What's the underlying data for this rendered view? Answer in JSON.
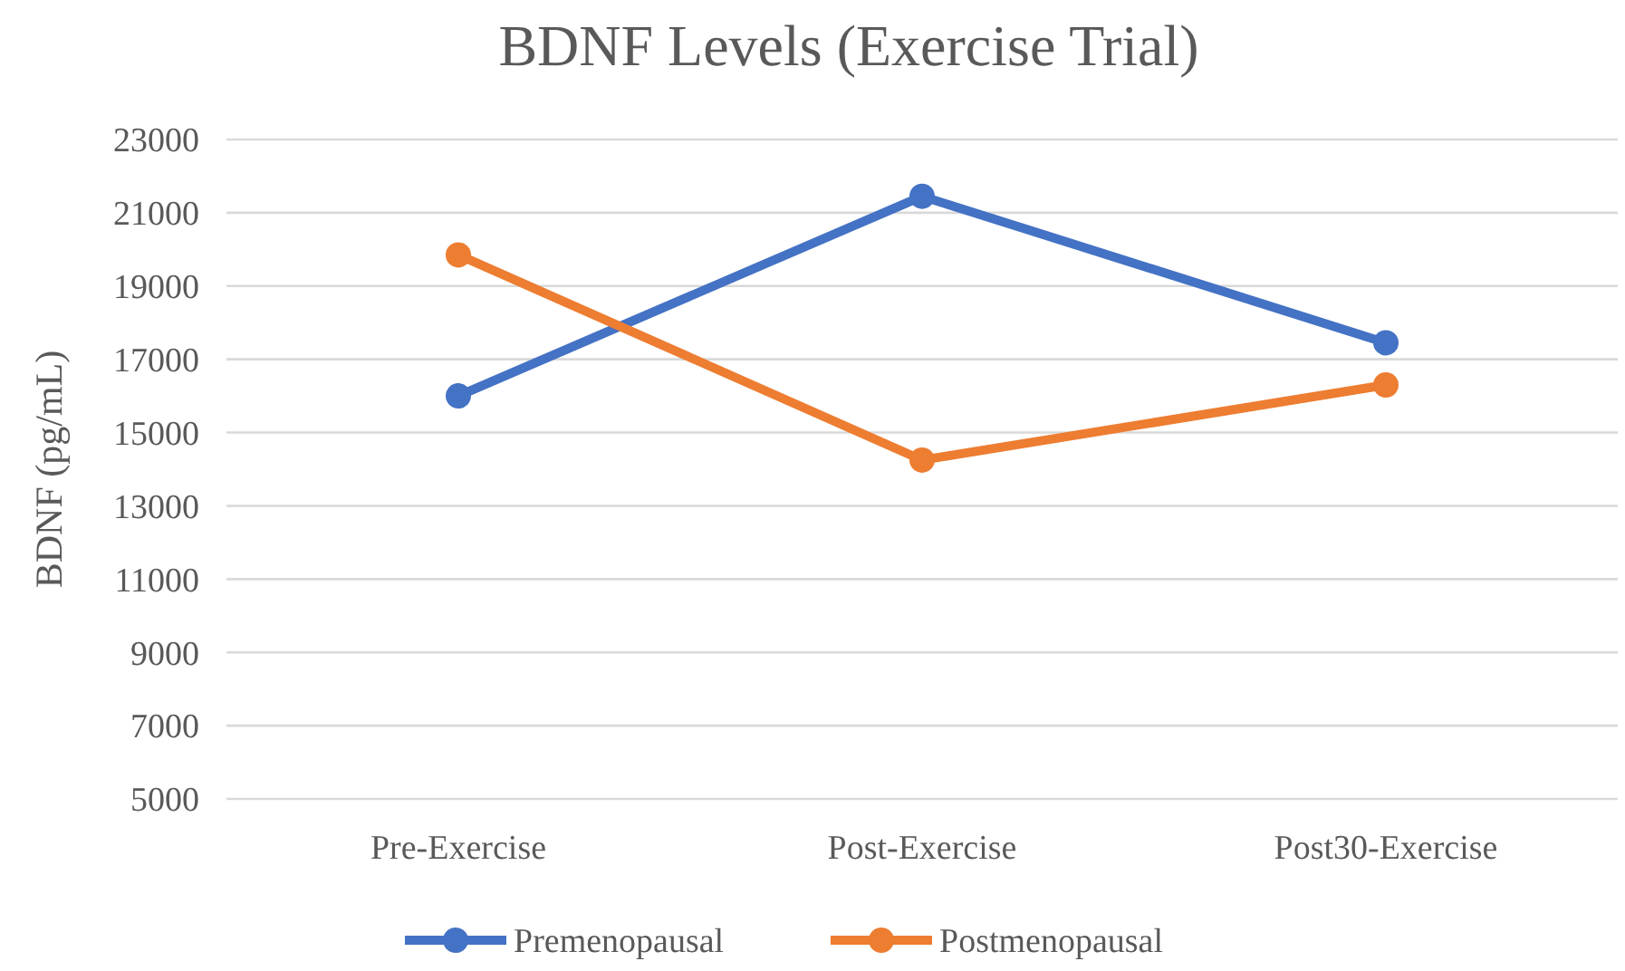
{
  "chart_data": {
    "type": "line",
    "title": "BDNF Levels (Exercise Trial)",
    "ylabel": "BDNF (pg/mL)",
    "categories": [
      "Pre-Exercise",
      "Post-Exercise",
      "Post30-Exercise"
    ],
    "series": [
      {
        "name": "Premenopausal",
        "color": "#4472c4",
        "values": [
          16000,
          21450,
          17450
        ]
      },
      {
        "name": "Postmenopausal",
        "color": "#ed7d31",
        "values": [
          19850,
          14250,
          16300
        ]
      }
    ],
    "ylim": [
      5000,
      23000
    ],
    "yticks": [
      5000,
      7000,
      9000,
      11000,
      13000,
      15000,
      17000,
      19000,
      21000,
      23000
    ],
    "grid": "y",
    "legend": "bottom",
    "marker": "circle",
    "line_style": "solid"
  }
}
